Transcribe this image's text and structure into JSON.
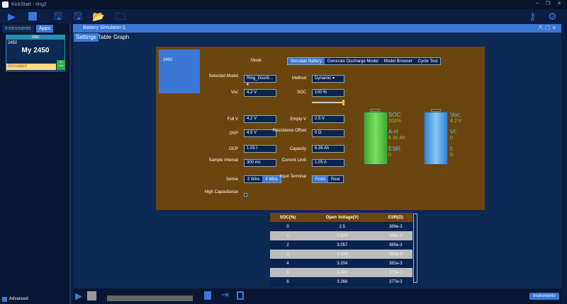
{
  "window": {
    "title": "KickStart - ring2"
  },
  "sidebar": {
    "tabs": [
      "Instruments",
      "Apps"
    ],
    "card": {
      "type": "SMU",
      "model": "2450",
      "name": "My 2450",
      "status": "Simulated",
      "badge": "IN Use"
    },
    "advanced": "Advanced"
  },
  "panel": {
    "title": "Battery Simulator-1",
    "tabs": [
      "Settings",
      "Table",
      "Graph"
    ],
    "instrument_tile": "2450"
  },
  "settings": {
    "mode_label": "Mode",
    "modes": [
      "Simulate Battery",
      "Generate Discharge Model",
      "Model Browser",
      "Cycle Test"
    ],
    "active_mode": "Simulate Battery",
    "selected_model_label": "Selected Model",
    "selected_model": "Ring_Doorb...",
    "method_label": "Method",
    "method": "Dynamic",
    "voc_label": "Voc",
    "voc": "4.2 V",
    "soc_label": "SOC",
    "soc": "100 %",
    "soc_slider_percent": 100,
    "fullv_label": "Full V",
    "fullv": "4.2 V",
    "emptyv_label": "Empty V",
    "emptyv": "2.5 V",
    "ovp_label": "OVP",
    "ovp": "4.5 V",
    "res_label": "Resistance Offset",
    "res": "0 Ω",
    "ocp_label": "OCP",
    "ocp": "1.05 I",
    "cap_label": "Capacity",
    "cap": "6.36 Ah",
    "si_label": "Sample Interval",
    "si": "300 ms",
    "cl_label": "Current Limit",
    "cl": "1.05 A",
    "sense_label": "Sense",
    "sense": [
      "2 Wire",
      "4 Wire"
    ],
    "sense_active": "4 Wire",
    "it_label": "Input Terminal",
    "terminal": [
      "Front",
      "Rear"
    ],
    "terminal_active": "Front",
    "hc_label": "High Capacitance"
  },
  "gauges": {
    "soc_label": "SOC:",
    "soc": "100%",
    "ah_label": "A-H",
    "ah": "6.36 Ah",
    "esr_label": "ESR:",
    "esr": "0",
    "voc_label": "Voc:",
    "voc": "4.2 V",
    "vt_label": "Vt:",
    "vt": "0",
    "i_label": "I:",
    "i": "0",
    "colors": {
      "soc": "#4cc93c",
      "voc": "#3a9ae8"
    }
  },
  "table": {
    "headers": [
      "SOC(%)",
      "Open Voltage(V)",
      "ESR(Ω)"
    ],
    "rows": [
      [
        "0",
        "2.5",
        "389e-3"
      ],
      [
        "1",
        "2.929",
        "386e-3"
      ],
      [
        "2",
        "3.057",
        "385e-3"
      ],
      [
        "3",
        "3.144",
        "383e-3"
      ],
      [
        "4",
        "3.204",
        "381e-3"
      ],
      [
        "5",
        "3.240",
        "379e-3"
      ],
      [
        "6",
        "3.268",
        "377e-3"
      ]
    ]
  },
  "footer": {
    "instruments_button": "Instruments"
  }
}
